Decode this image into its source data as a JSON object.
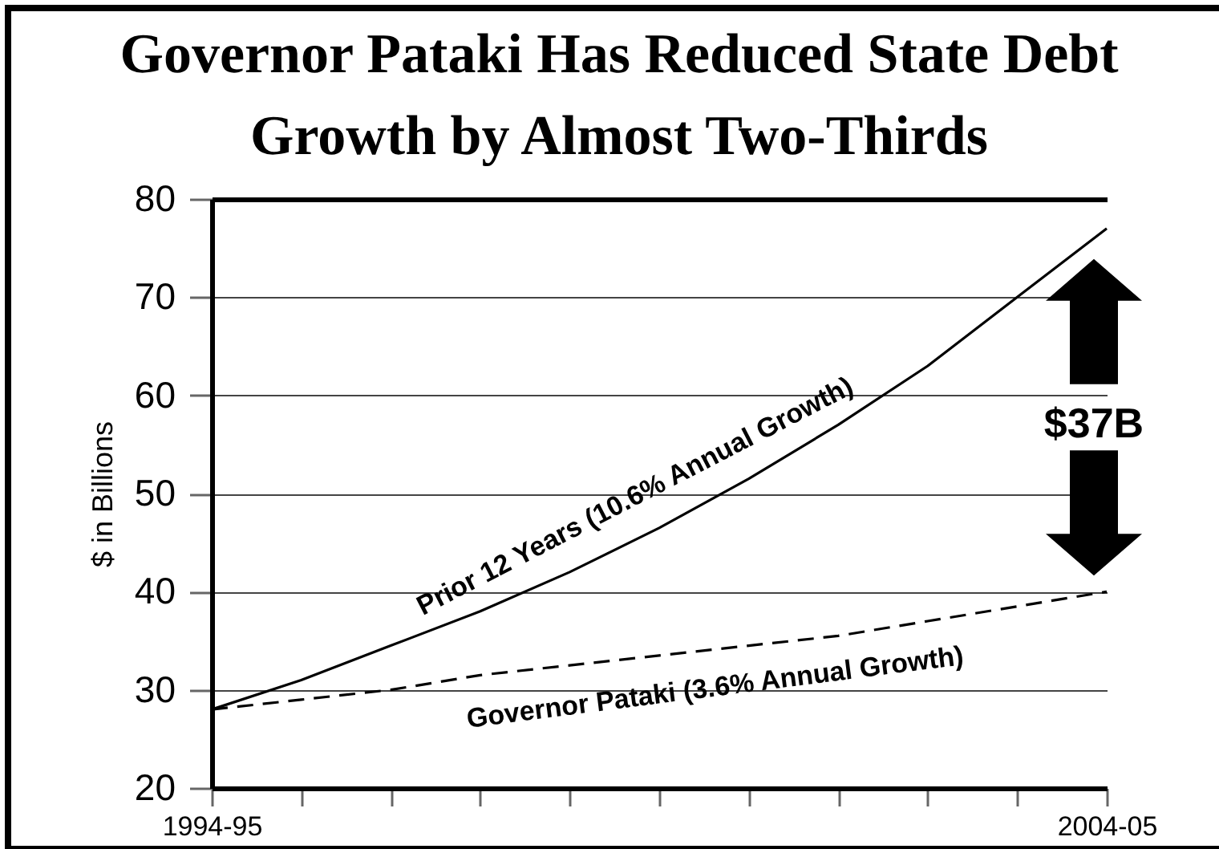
{
  "chart_data": {
    "type": "line",
    "title": "Governor Pataki Has Reduced State Debt Growth by Almost Two-Thirds",
    "ylabel": "$ in Billions",
    "categories": [
      "1994-95",
      null,
      null,
      null,
      null,
      null,
      null,
      null,
      null,
      null,
      "2004-05"
    ],
    "ylim": [
      20,
      80
    ],
    "yticks": [
      20,
      30,
      40,
      50,
      60,
      70,
      80
    ],
    "grid": "y",
    "line_style": "solid",
    "series": [
      {
        "name": "Prior 12 Years (10.6% Annual Growth)",
        "color": "#000000",
        "values": [
          28,
          31,
          34.5,
          38,
          42,
          46.5,
          51.5,
          57,
          63,
          70,
          77
        ]
      },
      {
        "name": "Governor Pataki (3.6% Annual Growth)",
        "color": "#000000",
        "line_style": "dashed",
        "values": [
          28,
          29,
          30,
          31.5,
          32.5,
          33.5,
          34.5,
          35.5,
          37,
          38.5,
          40
        ]
      }
    ],
    "annotations": [
      "$37B"
    ]
  }
}
